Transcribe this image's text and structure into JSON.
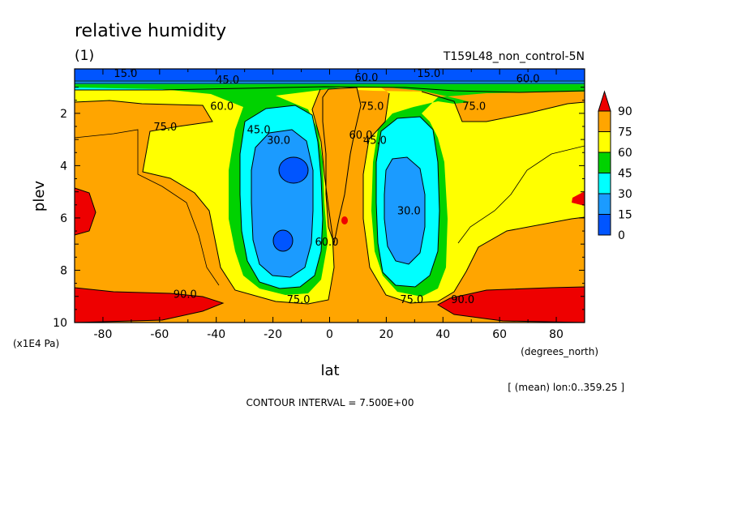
{
  "chart_data": {
    "type": "contour",
    "title": "relative humidity",
    "subtitle": "(1)",
    "experiment": "T159L48_non_control-5N",
    "xlabel": "lat",
    "x_units": "(degrees_north)",
    "ylabel": "plev",
    "y_units": "(x1E4 Pa)",
    "xlim": [
      -90,
      90
    ],
    "ylim": [
      0.3,
      10
    ],
    "y_inverted": true,
    "x_ticks": [
      -80,
      -60,
      -40,
      -20,
      0,
      20,
      40,
      60,
      80
    ],
    "y_ticks": [
      2,
      4,
      6,
      8,
      10
    ],
    "mean_note": "[ (mean) lon:0..359.25 ]",
    "contour_interval": "CONTOUR INTERVAL = 7.500E+00",
    "colorbar": {
      "levels": [
        0,
        15,
        30,
        45,
        60,
        75,
        90
      ],
      "colors": [
        "#0055ff",
        "#1b9bff",
        "#00ffff",
        "#00d200",
        "#ffff00",
        "#ffa500",
        "#ee0000"
      ]
    },
    "contour_labels": [
      {
        "text": "15.0",
        "lat": -72,
        "plev": 0.55
      },
      {
        "text": "15.0",
        "lat": 35,
        "plev": 0.55
      },
      {
        "text": "45.0",
        "lat": -36,
        "plev": 0.8
      },
      {
        "text": "60.0",
        "lat": 13,
        "plev": 0.7
      },
      {
        "text": "60.0",
        "lat": 70,
        "plev": 0.75
      },
      {
        "text": "60.0",
        "lat": -38,
        "plev": 1.8
      },
      {
        "text": "75.0",
        "lat": -58,
        "plev": 2.6
      },
      {
        "text": "75.0",
        "lat": 15,
        "plev": 1.8
      },
      {
        "text": "75.0",
        "lat": 51,
        "plev": 1.8
      },
      {
        "text": "60.0",
        "lat": 11,
        "plev": 2.9
      },
      {
        "text": "45.0",
        "lat": -25,
        "plev": 2.7
      },
      {
        "text": "30.0",
        "lat": -18,
        "plev": 3.1
      },
      {
        "text": "45.0",
        "lat": 16,
        "plev": 3.1
      },
      {
        "text": "30.0",
        "lat": 28,
        "plev": 5.8
      },
      {
        "text": "60.0",
        "lat": -1,
        "plev": 7.0
      },
      {
        "text": "90.0",
        "lat": -51,
        "plev": 9.0
      },
      {
        "text": "75.0",
        "lat": -11,
        "plev": 9.2
      },
      {
        "text": "75.0",
        "lat": 29,
        "plev": 9.2
      },
      {
        "text": "90.0",
        "lat": 47,
        "plev": 9.2
      }
    ]
  }
}
